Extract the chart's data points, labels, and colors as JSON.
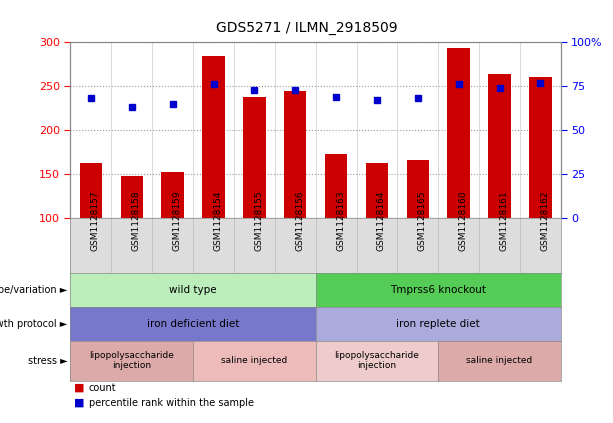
{
  "title": "GDS5271 / ILMN_2918509",
  "samples": [
    "GSM1128157",
    "GSM1128158",
    "GSM1128159",
    "GSM1128154",
    "GSM1128155",
    "GSM1128156",
    "GSM1128163",
    "GSM1128164",
    "GSM1128165",
    "GSM1128160",
    "GSM1128161",
    "GSM1128162"
  ],
  "counts": [
    163,
    148,
    152,
    284,
    238,
    245,
    173,
    163,
    166,
    293,
    264,
    260
  ],
  "percentiles": [
    68,
    63,
    65,
    76,
    73,
    73,
    69,
    67,
    68,
    76,
    74,
    77
  ],
  "ylim_left": [
    100,
    300
  ],
  "ylim_right": [
    0,
    100
  ],
  "yticks_left": [
    100,
    150,
    200,
    250,
    300
  ],
  "yticks_right": [
    0,
    25,
    50,
    75,
    100
  ],
  "bar_color": "#cc0000",
  "dot_color": "#0000cc",
  "bar_base": 100,
  "genotype_segs": [
    {
      "label": "wild type",
      "start": 0,
      "end": 6,
      "color": "#bbeebb"
    },
    {
      "label": "Tmprss6 knockout",
      "start": 6,
      "end": 12,
      "color": "#55cc55"
    }
  ],
  "growth_segs": [
    {
      "label": "iron deficient diet",
      "start": 0,
      "end": 6,
      "color": "#7777cc"
    },
    {
      "label": "iron replete diet",
      "start": 6,
      "end": 12,
      "color": "#aaaadd"
    }
  ],
  "stress_segs": [
    {
      "label": "lipopolysaccharide\ninjection",
      "start": 0,
      "end": 3,
      "color": "#ddaaaa"
    },
    {
      "label": "saline injected",
      "start": 3,
      "end": 6,
      "color": "#eebbbb"
    },
    {
      "label": "lipopolysaccharide\ninjection",
      "start": 6,
      "end": 9,
      "color": "#eecccc"
    },
    {
      "label": "saline injected",
      "start": 9,
      "end": 12,
      "color": "#ddaaaa"
    }
  ],
  "legend_count_color": "#cc0000",
  "legend_pct_color": "#0000cc",
  "grid_color": "#999999",
  "xtick_bg": "#dddddd",
  "chart_border": "#888888"
}
